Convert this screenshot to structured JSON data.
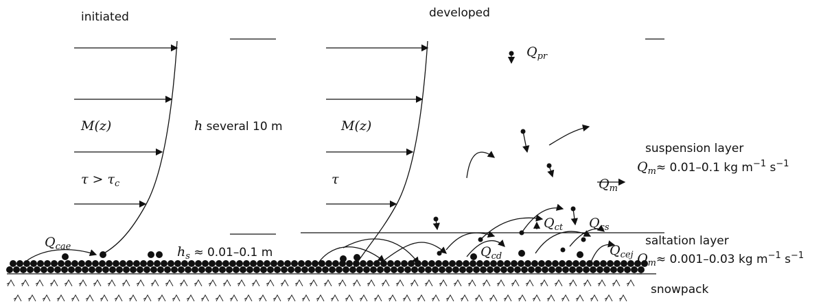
{
  "titles": [
    "initiated",
    "developed"
  ],
  "profile_labels": [
    "M(z)",
    "M(z)"
  ],
  "stress_labels": [
    {
      "symbol": "τ > τ",
      "sub": "c"
    },
    {
      "symbol": "τ"
    }
  ],
  "heights": [
    {
      "symbol": "h",
      "text": "several 10 m"
    },
    {
      "symbol": "h",
      "sub": "s",
      "text": "≈ 0.01–0.1 m"
    }
  ],
  "fluxes": [
    {
      "symbol": "Q",
      "sub": "cae"
    },
    {
      "symbol": "Q",
      "sub": "pr"
    },
    {
      "symbol": "Q",
      "sub": "m"
    },
    {
      "symbol": "Q",
      "sub": "ct"
    },
    {
      "symbol": "Q",
      "sub": "cs"
    },
    {
      "symbol": "Q",
      "sub": "cd"
    },
    {
      "symbol": "Q",
      "sub": "cej"
    }
  ],
  "layers": [
    {
      "name": "suspension layer",
      "symbol": "Q",
      "sub": "m",
      "value": "≈ 0.01–0.1 kg m",
      "exponent": "−1",
      "unit2": "s",
      "exponent2": "−1"
    },
    {
      "name": "saltation layer",
      "symbol": "Q",
      "sub": "m",
      "value": "≈ 0.001–0.03 kg m",
      "exponent": "−1",
      "unit2": "s",
      "exponent2": "−1"
    },
    {
      "name": "snowpack"
    }
  ]
}
